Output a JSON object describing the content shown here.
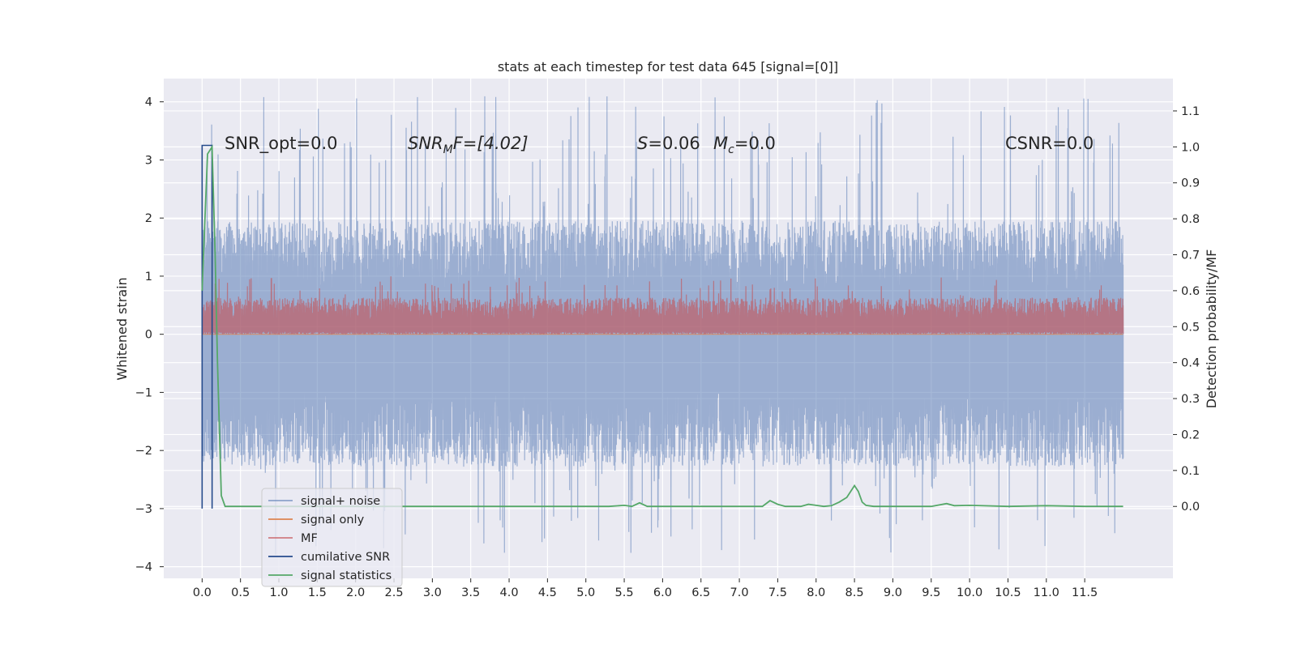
{
  "chart_data": {
    "type": "line",
    "title": "stats at each timestep for test data 645 [signal=[0]]",
    "xlabel": "",
    "ylabel": "Whitened strain",
    "y2label": "Detection probability/MF",
    "xlim": [
      -0.5,
      12.65
    ],
    "ylim": [
      -4.2,
      4.4
    ],
    "y2lim": [
      -0.2,
      1.19
    ],
    "xticks": [
      "0.0",
      "0.5",
      "1.0",
      "1.5",
      "2.0",
      "2.5",
      "3.0",
      "3.5",
      "4.0",
      "4.5",
      "5.0",
      "5.5",
      "6.0",
      "6.5",
      "7.0",
      "7.5",
      "8.0",
      "8.5",
      "9.0",
      "9.5",
      "10.0",
      "10.5",
      "11.0",
      "11.5"
    ],
    "yticks": [
      "4",
      "3",
      "2",
      "1",
      "0",
      "−1",
      "−2",
      "−3",
      "−4"
    ],
    "y2ticks": [
      "1.1",
      "1.0",
      "0.9",
      "0.8",
      "0.7",
      "0.6",
      "0.5",
      "0.4",
      "0.3",
      "0.2",
      "0.1",
      "0.0"
    ],
    "grid": true,
    "legend_position": "lower-left",
    "annotations": {
      "snr_opt": "SNR_opt=0.0",
      "snr_mf": "SNR",
      "snr_mf_sub": "M",
      "snr_mf_rest": "F=[4.02]",
      "s_label": "S",
      "s_value": "=0.06",
      "mc_label": "M",
      "mc_sub": "c",
      "mc_value": "=0.0",
      "csnr": "CSNR=0.0"
    },
    "series": [
      {
        "name": "signal+ noise",
        "color": "#4c72b0",
        "x_range": [
          0.0,
          12.0
        ],
        "envelope_upper_typical": 1.5,
        "envelope_lower_typical": -1.9,
        "peak_max": 4.1,
        "peak_min": -3.8
      },
      {
        "name": "signal only",
        "color": "#dd8452",
        "x_range": [
          0.0,
          12.0
        ],
        "values": "flat at 0"
      },
      {
        "name": "MF",
        "color": "#c44e52",
        "x_range": [
          0.0,
          12.0
        ],
        "envelope_upper_typical": 0.55,
        "envelope_lower_typical": 0.0,
        "peak_max": 1.0
      },
      {
        "name": "cumilative SNR",
        "color": "#264b8c",
        "x": [
          0.0,
          0.0,
          0.13,
          0.13
        ],
        "y": [
          -3.0,
          3.25,
          3.25,
          -3.0
        ]
      },
      {
        "name": "signal statistics",
        "color": "#55a868",
        "axis": "y2",
        "x": [
          0.0,
          0.07,
          0.13,
          0.17,
          0.2,
          0.25,
          0.3,
          1.0,
          2.0,
          3.0,
          4.0,
          5.0,
          5.3,
          5.5,
          5.6,
          5.7,
          5.8,
          6.0,
          7.0,
          7.3,
          7.4,
          7.5,
          7.6,
          7.8,
          7.9,
          8.0,
          8.1,
          8.2,
          8.3,
          8.4,
          8.5,
          8.55,
          8.6,
          8.65,
          8.75,
          9.0,
          9.5,
          9.7,
          9.8,
          10.0,
          10.5,
          11.0,
          11.5,
          12.0
        ],
        "y": [
          0.6,
          0.98,
          1.0,
          0.7,
          0.4,
          0.03,
          0.0,
          0.0,
          0.0,
          0.0,
          0.0,
          0.0,
          0.0,
          0.003,
          0.0,
          0.01,
          0.0,
          0.0,
          0.0,
          0.0,
          0.016,
          0.006,
          0.0,
          0.0,
          0.006,
          0.003,
          0.0,
          0.002,
          0.012,
          0.025,
          0.058,
          0.042,
          0.012,
          0.003,
          0.0,
          0.0,
          0.0,
          0.008,
          0.002,
          0.003,
          0.0,
          0.002,
          0.0,
          0.0
        ]
      }
    ]
  }
}
